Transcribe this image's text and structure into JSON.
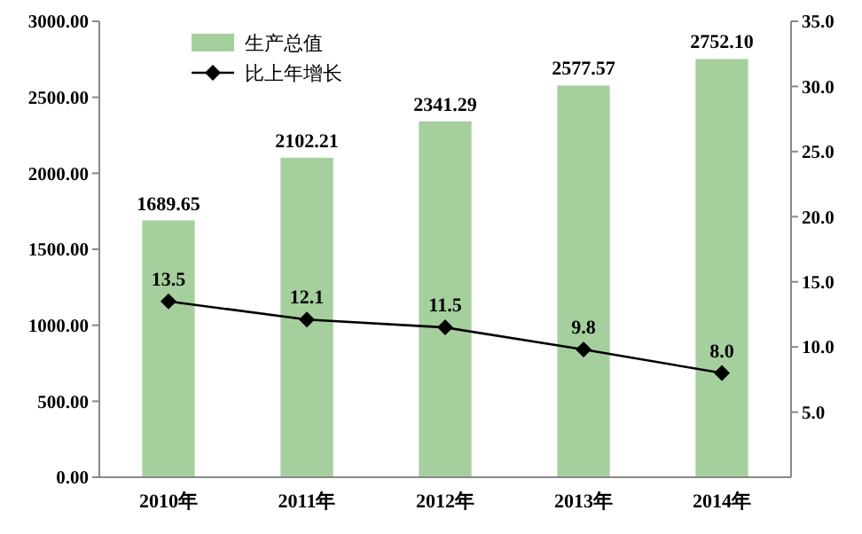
{
  "chart_data": {
    "type": "bar",
    "categories": [
      "2010年",
      "2011年",
      "2012年",
      "2013年",
      "2014年"
    ],
    "series": [
      {
        "name": "生产总值",
        "color": "#a6cf9e",
        "values": [
          1689.65,
          2102.21,
          2341.29,
          2577.57,
          2752.1
        ],
        "value_labels": [
          "1689.65",
          "2102.21",
          "2341.29",
          "2577.57",
          "2752.10"
        ]
      },
      {
        "name": "比上年增长",
        "type": "line",
        "axis": "y2",
        "color": "#000000",
        "marker": "diamond",
        "values": [
          13.5,
          12.1,
          11.5,
          9.8,
          8.0
        ],
        "value_labels": [
          "13.5",
          "12.1",
          "11.5",
          "9.8",
          "8.0"
        ]
      }
    ],
    "ylim": [
      0,
      3000
    ],
    "yticks": [
      {
        "value": 0,
        "label": "0.00"
      },
      {
        "value": 500,
        "label": "500.00"
      },
      {
        "value": 1000,
        "label": "1000.00"
      },
      {
        "value": 1500,
        "label": "1500.00"
      },
      {
        "value": 2000,
        "label": "2000.00"
      },
      {
        "value": 2500,
        "label": "2500.00"
      },
      {
        "value": 3000,
        "label": "3000.00"
      }
    ],
    "y2lim": [
      0,
      35
    ],
    "y2ticks": [
      {
        "value": 5,
        "label": "5.0"
      },
      {
        "value": 10,
        "label": "10.0"
      },
      {
        "value": 15,
        "label": "15.0"
      },
      {
        "value": 20,
        "label": "20.0"
      },
      {
        "value": 25,
        "label": "25.0"
      },
      {
        "value": 30,
        "label": "30.0"
      },
      {
        "value": 35,
        "label": "35.0"
      }
    ],
    "legend": "top left",
    "grid": false
  }
}
